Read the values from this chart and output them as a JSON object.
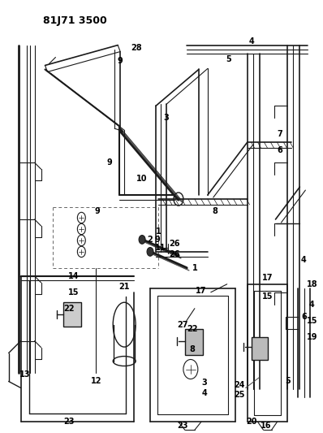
{
  "title": "81J71 3500",
  "bg": "#ffffff",
  "lc": "#1a1a1a",
  "tc": "#000000",
  "fw": 3.98,
  "fh": 5.33,
  "dpi": 100
}
